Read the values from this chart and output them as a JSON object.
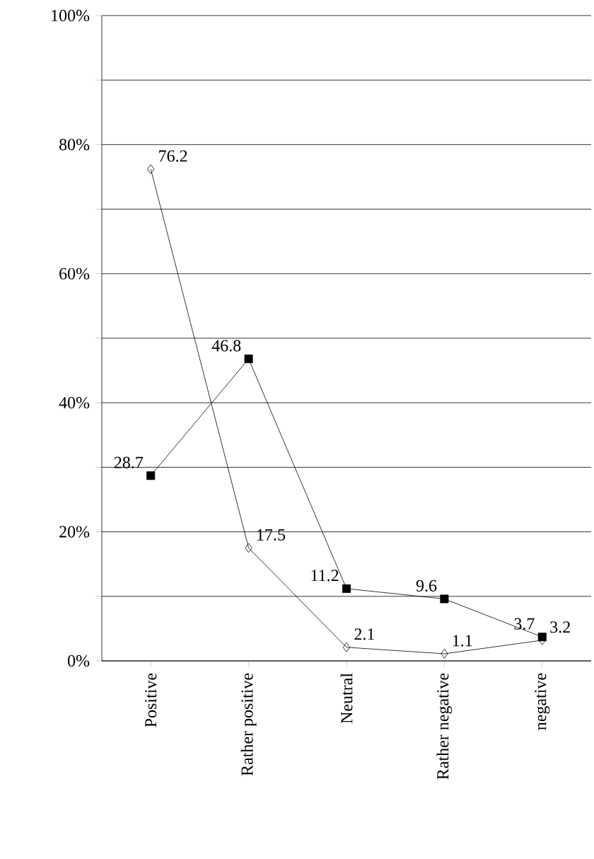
{
  "chart_data": {
    "type": "line",
    "categories": [
      "Positive",
      "Rather positive",
      "Neutral",
      "Rather negative",
      "negative"
    ],
    "series": [
      {
        "color": "#000000",
        "marker": "diamond",
        "values": [
          76.2,
          17.5,
          2.1,
          1.1,
          3.2
        ]
      },
      {
        "color": "#000000",
        "marker": "square",
        "values": [
          28.7,
          46.8,
          11.2,
          9.6,
          3.7
        ]
      }
    ],
    "ylim": [
      0,
      100
    ],
    "yticks": [
      {
        "value": 0,
        "label": "0%"
      },
      {
        "value": 10,
        "label": null
      },
      {
        "value": 20,
        "label": "20%"
      },
      {
        "value": 30,
        "label": null
      },
      {
        "value": 40,
        "label": "40%"
      },
      {
        "value": 50,
        "label": null
      },
      {
        "value": 60,
        "label": "60%"
      },
      {
        "value": 70,
        "label": null
      },
      {
        "value": 80,
        "label": "80%"
      },
      {
        "value": 90,
        "label": null
      },
      {
        "value": 100,
        "label": "100%"
      }
    ],
    "grid": "y",
    "data_labels": true,
    "line_style": "solid"
  }
}
